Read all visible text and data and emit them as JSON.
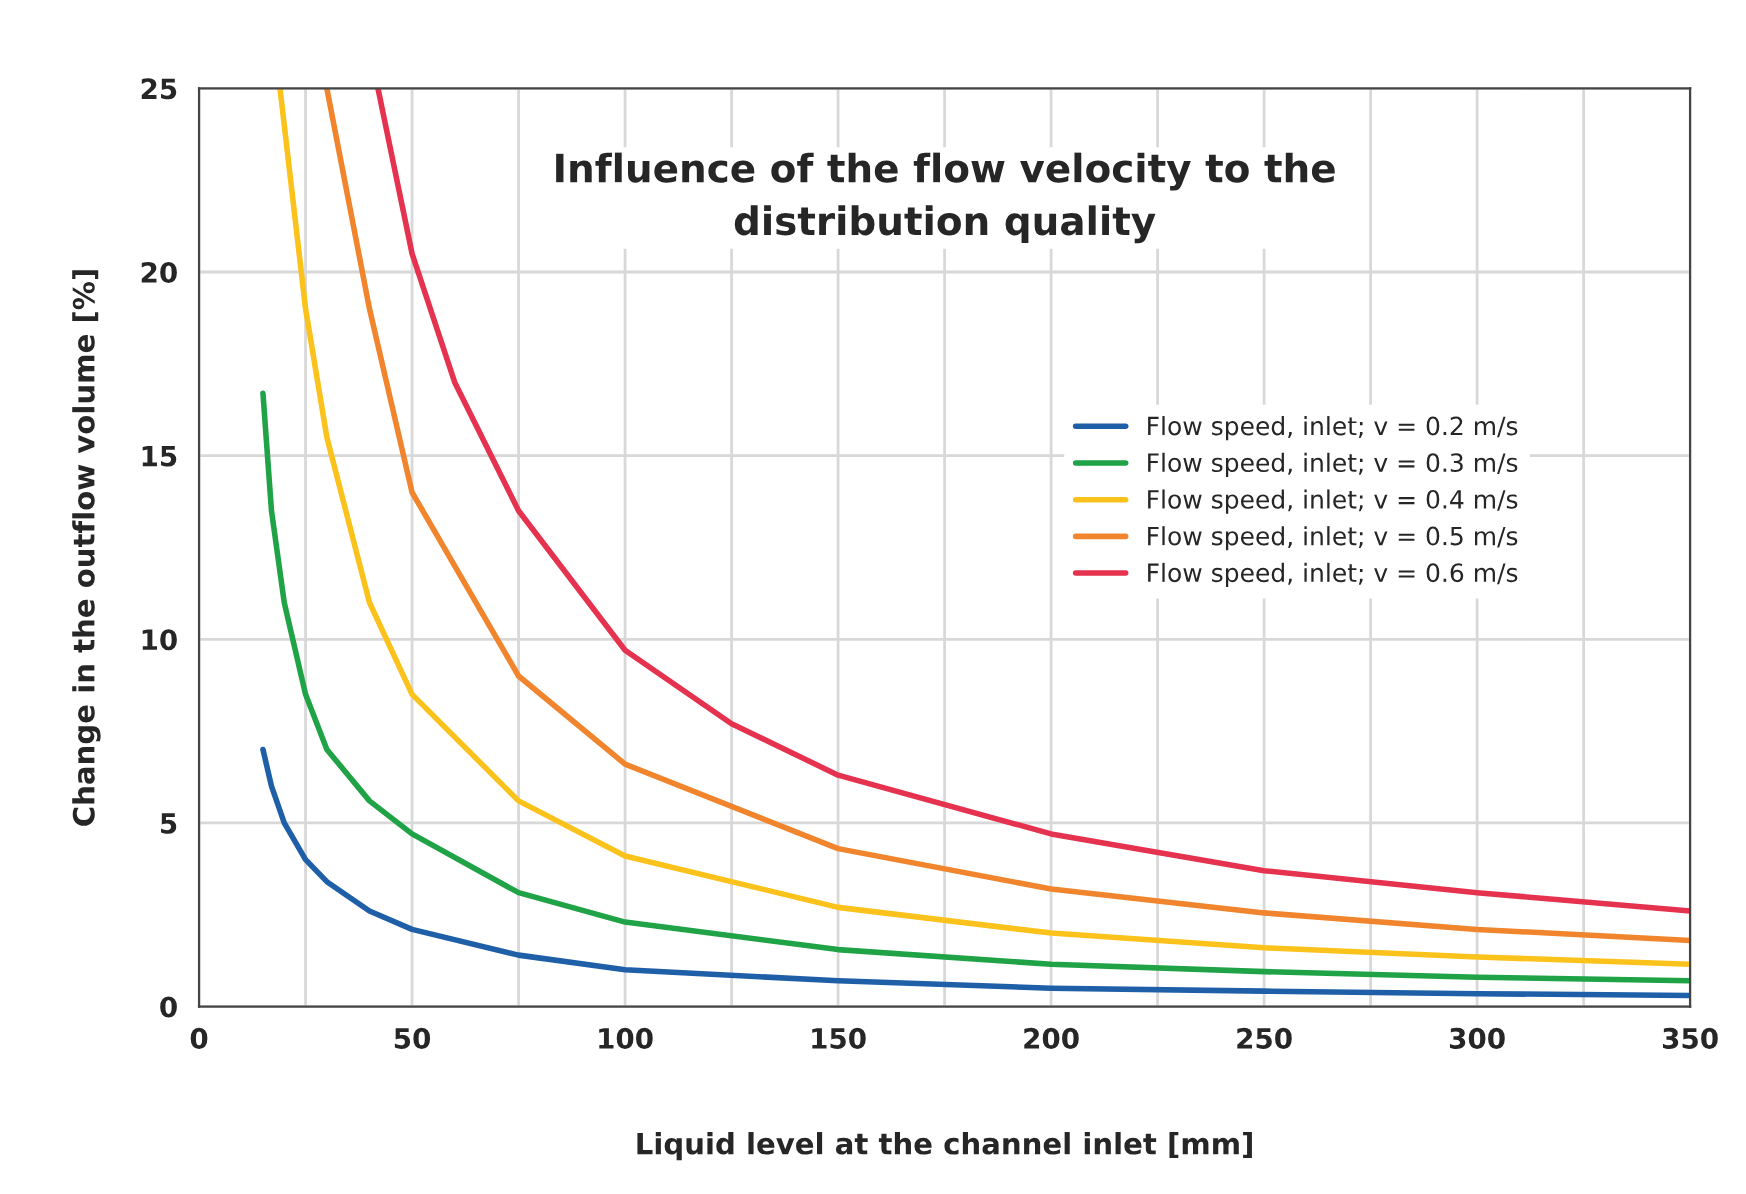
{
  "chart_data": {
    "type": "line",
    "title": "Influence of the flow velocity to the\ndistribution quality",
    "xlabel": "Liquid level at the channel inlet [mm]",
    "ylabel": "Change in the outflow volume [%]",
    "xlim": [
      0,
      350
    ],
    "ylim": [
      0,
      25
    ],
    "xticks": [
      0,
      {
        "value": 25,
        "label": null
      },
      50,
      {
        "value": 75,
        "label": null
      },
      100,
      {
        "value": 125,
        "label": null
      },
      150,
      {
        "value": 175,
        "label": null
      },
      200,
      {
        "value": 225,
        "label": null
      },
      250,
      {
        "value": 275,
        "label": null
      },
      300,
      {
        "value": 325,
        "label": null
      },
      350
    ],
    "yticks": [
      0,
      5,
      10,
      15,
      20,
      25
    ],
    "grid": true,
    "legend": "right",
    "line_style": "solid",
    "marker": "none",
    "series": [
      {
        "name": "Flow speed, inlet; v = 0.2 m/s",
        "color": "#1f5fa8",
        "x": [
          15,
          17,
          20,
          25,
          30,
          40,
          50,
          75,
          100,
          150,
          200,
          250,
          300,
          350
        ],
        "values": [
          7,
          6,
          5,
          4,
          3.4,
          2.6,
          2.1,
          1.4,
          1.0,
          0.7,
          0.5,
          0.42,
          0.35,
          0.3
        ]
      },
      {
        "name": "Flow speed, inlet; v = 0.3 m/s",
        "color": "#1fa346",
        "x": [
          15,
          17,
          20,
          25,
          30,
          40,
          50,
          75,
          100,
          150,
          200,
          250,
          300,
          350
        ],
        "values": [
          16.7,
          13.5,
          11,
          8.5,
          7,
          5.6,
          4.7,
          3.1,
          2.3,
          1.55,
          1.15,
          0.95,
          0.8,
          0.7
        ]
      },
      {
        "name": "Flow speed, inlet; v = 0.4 m/s",
        "color": "#fbc21b",
        "x": [
          19,
          25,
          30,
          40,
          50,
          75,
          100,
          150,
          200,
          250,
          300,
          350
        ],
        "values": [
          25,
          19,
          15.5,
          11,
          8.5,
          5.6,
          4.1,
          2.7,
          2.0,
          1.6,
          1.35,
          1.15
        ]
      },
      {
        "name": "Flow speed, inlet; v = 0.5 m/s",
        "color": "#f0852d",
        "x": [
          30,
          40,
          50,
          75,
          100,
          150,
          200,
          250,
          300,
          350
        ],
        "values": [
          25,
          19,
          14,
          9,
          6.6,
          4.3,
          3.2,
          2.55,
          2.1,
          1.8
        ]
      },
      {
        "name": "Flow speed, inlet; v = 0.6 m/s",
        "color": "#e5324f",
        "x": [
          42,
          50,
          60,
          75,
          100,
          125,
          150,
          200,
          250,
          300,
          350
        ],
        "values": [
          25,
          20.5,
          17,
          13.5,
          9.7,
          7.7,
          6.3,
          4.7,
          3.7,
          3.1,
          2.6
        ]
      }
    ]
  }
}
